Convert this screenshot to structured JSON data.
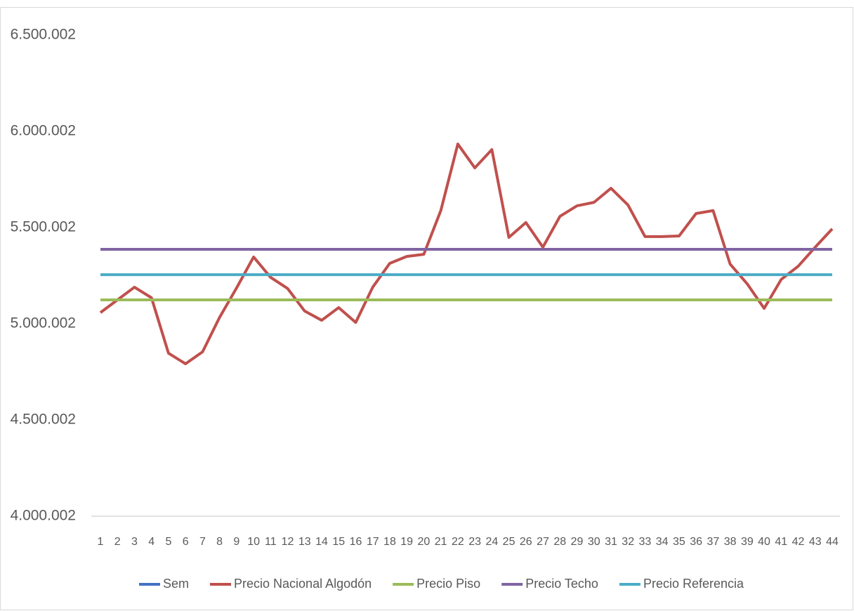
{
  "chart_data": {
    "type": "line",
    "categories": [
      "1",
      "2",
      "3",
      "4",
      "5",
      "6",
      "7",
      "8",
      "9",
      "10",
      "11",
      "12",
      "13",
      "14",
      "15",
      "16",
      "17",
      "18",
      "19",
      "20",
      "21",
      "22",
      "23",
      "24",
      "25",
      "26",
      "27",
      "28",
      "29",
      "30",
      "31",
      "32",
      "33",
      "34",
      "35",
      "36",
      "37",
      "38",
      "39",
      "40",
      "41",
      "42",
      "43",
      "44"
    ],
    "series": [
      {
        "name": "Sem",
        "color": "#4472c4",
        "values": [
          null,
          null,
          null,
          null,
          null,
          null,
          null,
          null,
          null,
          null,
          null,
          null,
          null,
          null,
          null,
          null,
          null,
          null,
          null,
          null,
          null,
          null,
          null,
          null,
          null,
          null,
          null,
          null,
          null,
          null,
          null,
          null,
          null,
          null,
          null,
          null,
          null,
          null,
          null,
          null,
          null,
          null,
          null,
          null
        ]
      },
      {
        "name": "Precio Nacional Algodón",
        "color": "#c0504d",
        "values": [
          5058000,
          5124000,
          5190000,
          5135000,
          4847000,
          4792000,
          4854000,
          5033000,
          5186000,
          5347000,
          5241000,
          5183000,
          5066000,
          5018000,
          5084000,
          5007000,
          5190000,
          5314000,
          5350000,
          5361000,
          5588000,
          5934000,
          5810000,
          5905000,
          5449000,
          5526000,
          5398000,
          5558000,
          5613000,
          5631000,
          5704000,
          5617000,
          5453000,
          5453000,
          5456000,
          5573000,
          5588000,
          5310000,
          5208000,
          5080000,
          5230000,
          5299000,
          5398000,
          5493000
        ]
      },
      {
        "name": "Precio Piso",
        "color": "#9bbb59",
        "values": [
          5124000,
          5124000,
          5124000,
          5124000,
          5124000,
          5124000,
          5124000,
          5124000,
          5124000,
          5124000,
          5124000,
          5124000,
          5124000,
          5124000,
          5124000,
          5124000,
          5124000,
          5124000,
          5124000,
          5124000,
          5124000,
          5124000,
          5124000,
          5124000,
          5124000,
          5124000,
          5124000,
          5124000,
          5124000,
          5124000,
          5124000,
          5124000,
          5124000,
          5124000,
          5124000,
          5124000,
          5124000,
          5124000,
          5124000,
          5124000,
          5124000,
          5124000,
          5124000,
          5124000
        ]
      },
      {
        "name": "Precio Techo",
        "color": "#8064a2",
        "values": [
          5387000,
          5387000,
          5387000,
          5387000,
          5387000,
          5387000,
          5387000,
          5387000,
          5387000,
          5387000,
          5387000,
          5387000,
          5387000,
          5387000,
          5387000,
          5387000,
          5387000,
          5387000,
          5387000,
          5387000,
          5387000,
          5387000,
          5387000,
          5387000,
          5387000,
          5387000,
          5387000,
          5387000,
          5387000,
          5387000,
          5387000,
          5387000,
          5387000,
          5387000,
          5387000,
          5387000,
          5387000,
          5387000,
          5387000,
          5387000,
          5387000,
          5387000,
          5387000,
          5387000
        ]
      },
      {
        "name": "Precio Referencia",
        "color": "#4bacc6",
        "values": [
          5255000,
          5255000,
          5255000,
          5255000,
          5255000,
          5255000,
          5255000,
          5255000,
          5255000,
          5255000,
          5255000,
          5255000,
          5255000,
          5255000,
          5255000,
          5255000,
          5255000,
          5255000,
          5255000,
          5255000,
          5255000,
          5255000,
          5255000,
          5255000,
          5255000,
          5255000,
          5255000,
          5255000,
          5255000,
          5255000,
          5255000,
          5255000,
          5255000,
          5255000,
          5255000,
          5255000,
          5255000,
          5255000,
          5255000,
          5255000,
          5255000,
          5255000,
          5255000,
          5255000
        ]
      }
    ],
    "ylim": [
      4000002,
      6500002
    ],
    "yticks": [
      {
        "value": 4000002,
        "label": "4.000.002"
      },
      {
        "value": 4500002,
        "label": "4.500.002"
      },
      {
        "value": 5000002,
        "label": "5.000.002"
      },
      {
        "value": 5500002,
        "label": "5.500.002"
      },
      {
        "value": 6000002,
        "label": "6.000.002"
      },
      {
        "value": 6500002,
        "label": "6.500.002"
      }
    ],
    "grid": false,
    "legend": "bottom"
  }
}
